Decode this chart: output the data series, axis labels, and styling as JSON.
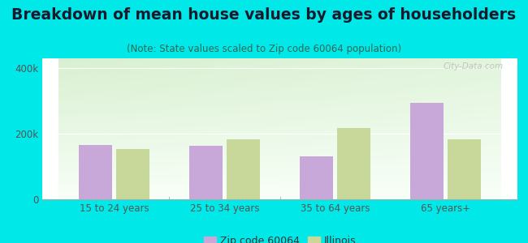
{
  "title": "Breakdown of mean house values by ages of householders",
  "subtitle": "(Note: State values scaled to Zip code 60064 population)",
  "categories": [
    "15 to 24 years",
    "25 to 34 years",
    "35 to 64 years",
    "65 years+"
  ],
  "zip_values": [
    165000,
    163000,
    130000,
    295000
  ],
  "il_values": [
    153000,
    183000,
    218000,
    183000
  ],
  "zip_color": "#c8a8d8",
  "il_color": "#c8d89a",
  "bg_color": "#00e8e8",
  "ylim": [
    0,
    430000
  ],
  "ytick_labels": [
    "0",
    "200k",
    "400k"
  ],
  "ytick_vals": [
    0,
    200000,
    400000
  ],
  "grid_color": "#ffffff",
  "title_fontsize": 13.5,
  "subtitle_fontsize": 8.5,
  "axis_fontsize": 8.5,
  "legend_fontsize": 9,
  "watermark": "City-Data.com",
  "zip_label": "Zip code 60064",
  "il_label": "Illinois",
  "title_color": "#1a1a2e",
  "subtitle_color": "#336655",
  "tick_color": "#555555"
}
